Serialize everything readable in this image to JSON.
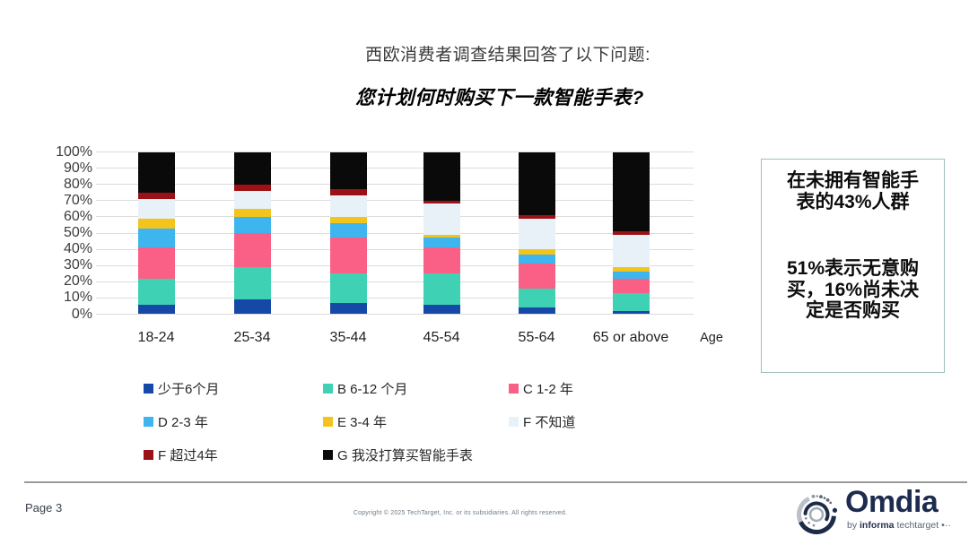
{
  "slide": {
    "title": "西欧消费者调查结果回答了以下问题:",
    "subtitle": "您计划何时购买下一款智能手表?"
  },
  "chart_data": {
    "type": "bar",
    "variant": "stacked-100-percent",
    "title": "西欧消费者调查结果回答了以下问题:",
    "subtitle": "您计划何时购买下一款智能手表?",
    "categories": [
      "18-24",
      "25-34",
      "35-44",
      "45-54",
      "55-64",
      "65 or above"
    ],
    "xlabel": "Age",
    "ylabel": "",
    "ylim": [
      0,
      100
    ],
    "y_tick_labels": [
      "0%",
      "10%",
      "20%",
      "30%",
      "40%",
      "50%",
      "60%",
      "70%",
      "80%",
      "90%",
      "100%"
    ],
    "grid": true,
    "legend_position": "bottom",
    "series": [
      {
        "name": "少于6个月",
        "color": "#1648a8",
        "values": [
          6,
          9,
          7,
          6,
          4,
          2
        ]
      },
      {
        "name": "B 6-12 个月",
        "color": "#3fd1b4",
        "values": [
          16,
          20,
          18,
          19,
          12,
          11
        ]
      },
      {
        "name": "C 1-2 年",
        "color": "#fa6086",
        "values": [
          19,
          21,
          22,
          16,
          15,
          9
        ]
      },
      {
        "name": "D 2-3 年",
        "color": "#3eb5ee",
        "values": [
          12,
          10,
          9,
          6,
          6,
          4
        ]
      },
      {
        "name": "E 3-4 年",
        "color": "#f3c41c",
        "values": [
          6,
          5,
          4,
          2,
          3,
          3
        ]
      },
      {
        "name": "F 不知道",
        "color": "#e8f1f8",
        "values": [
          12,
          11,
          13,
          19,
          19,
          20
        ]
      },
      {
        "name": "F 超过4年",
        "color": "#9c1115",
        "values": [
          4,
          4,
          4,
          2,
          2,
          2
        ]
      },
      {
        "name": "G 我没打算买智能手表",
        "color": "#0a0a0a",
        "values": [
          25,
          20,
          23,
          30,
          39,
          49
        ]
      }
    ]
  },
  "callout": {
    "border_color": "#9dbebc",
    "paragraph1": "在未拥有智能手表的43%人群",
    "paragraph2": "51%表示无意购买，16%尚未决定是否购买"
  },
  "footer": {
    "page_number": "Page 3",
    "copyright": "Copyright © 2025 TechTarget, Inc. or its subsidiaries. All rights reserved.",
    "logo": {
      "brand": "Omdia",
      "byline_prefix": "by ",
      "byline_bold": "informa",
      "byline_suffix": " techtarget",
      "byline_dots": " •··",
      "brand_color": "#1c2b4e"
    }
  },
  "colors": {
    "grid": "#dcdcdc",
    "divider": "#9a9a9a",
    "title_text": "#3a3a3a"
  }
}
